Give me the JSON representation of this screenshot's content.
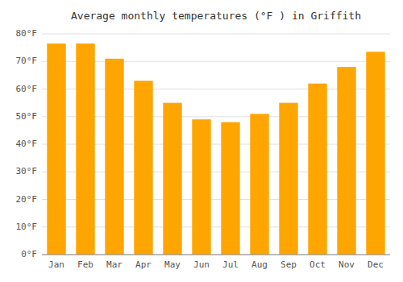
{
  "chart_data": {
    "type": "bar",
    "title": "Average monthly temperatures (°F ) in Griffith",
    "categories": [
      "Jan",
      "Feb",
      "Mar",
      "Apr",
      "May",
      "Jun",
      "Jul",
      "Aug",
      "Sep",
      "Oct",
      "Nov",
      "Dec"
    ],
    "values": [
      76.5,
      76.5,
      71.0,
      63.0,
      55.0,
      49.0,
      48.0,
      51.0,
      55.0,
      62.0,
      68.0,
      73.5
    ],
    "color": "#FFA500",
    "ylim": [
      0,
      80
    ],
    "yticks": [
      {
        "value": 0,
        "label": "0°F"
      },
      {
        "value": 10,
        "label": "10°F"
      },
      {
        "value": 20,
        "label": "20°F"
      },
      {
        "value": 30,
        "label": "30°F"
      },
      {
        "value": 40,
        "label": "40°F"
      },
      {
        "value": 50,
        "label": "50°F"
      },
      {
        "value": 60,
        "label": "60°F"
      },
      {
        "value": 70,
        "label": "70°F"
      },
      {
        "value": 80,
        "label": "80°F"
      }
    ],
    "grid": true
  }
}
